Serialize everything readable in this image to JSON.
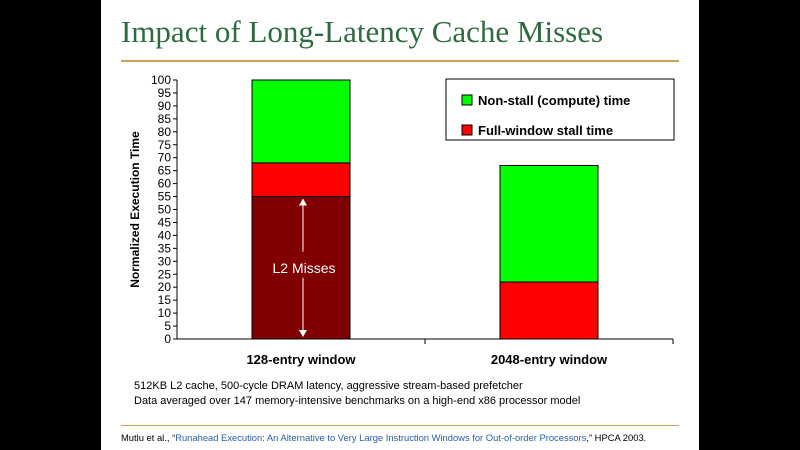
{
  "slide": {
    "title": "Impact of Long-Latency Cache Misses",
    "notes": [
      "512KB L2 cache, 500-cycle DRAM latency, aggressive stream-based prefetcher",
      "Data averaged over 147 memory-intensive benchmarks on a high-end x86 processor model"
    ],
    "citation": {
      "prefix": "Mutlu et al., “",
      "link": "Runahead Execution: An Alternative to Very Large Instruction Windows for Out-of-order Processors",
      "suffix": ",” HPCA 2003."
    }
  },
  "chart_data": {
    "type": "bar",
    "stacked": true,
    "categories": [
      "128-entry window",
      "2048-entry window"
    ],
    "series": [
      {
        "name": "Full-window stall time",
        "values": [
          68,
          22
        ],
        "color": "#ff0000"
      },
      {
        "name": "Non-stall (compute) time",
        "values": [
          32,
          45
        ],
        "color": "#00ff00"
      }
    ],
    "annotation": {
      "text": "L2 Misses",
      "category": "128-entry window",
      "from": 0,
      "to": 55,
      "color": "#800000"
    },
    "ylabel": "Normalized Execution Time",
    "xlabel": "",
    "ylim": [
      0,
      100
    ],
    "ytick_step": 5,
    "grid": false,
    "legend": {
      "position": "top-right",
      "entries": [
        "Non-stall (compute) time",
        "Full-window stall time"
      ]
    }
  }
}
